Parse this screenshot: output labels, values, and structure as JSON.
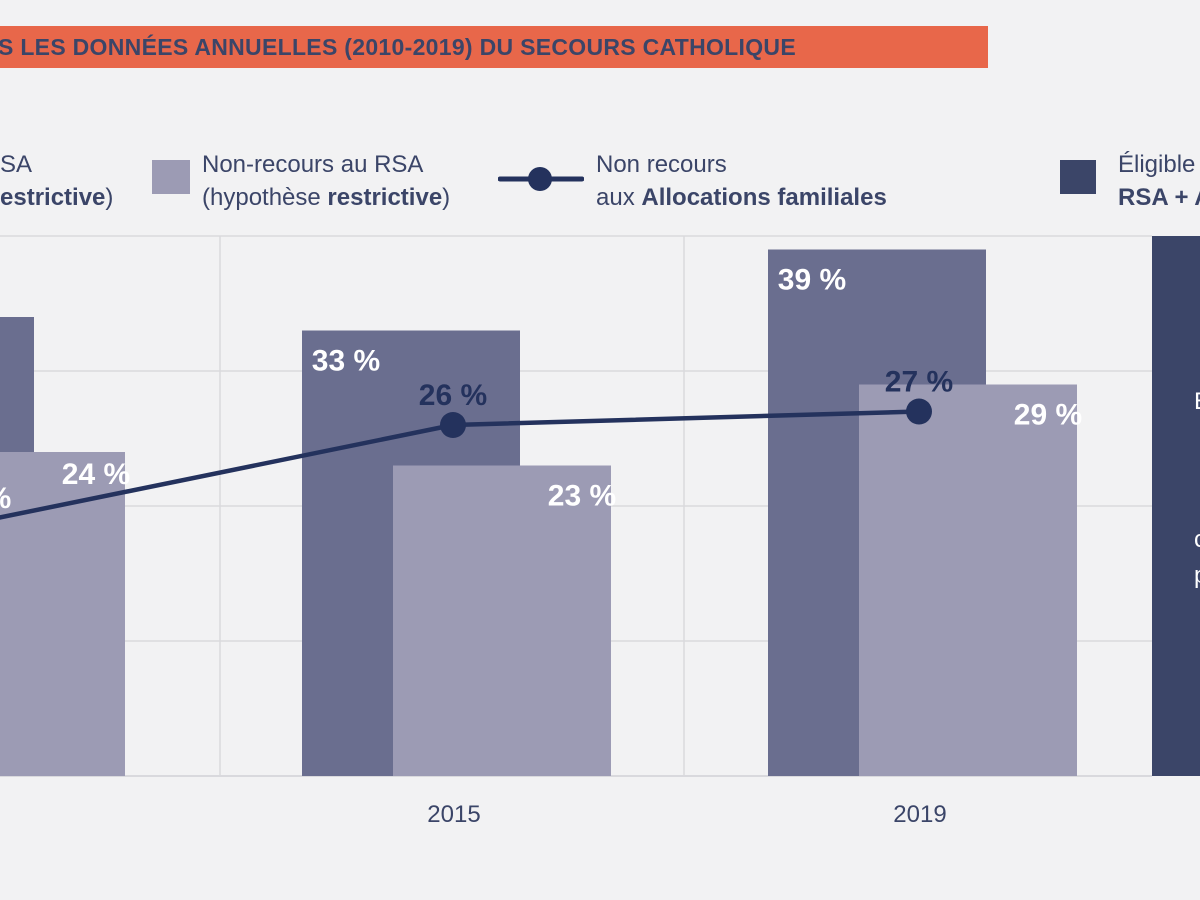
{
  "banner": {
    "text": "S LES DONNÉES ANNUELLES (2010-2019) DU SECOURS CATHOLIQUE"
  },
  "legend": {
    "item1": {
      "line1": "SA",
      "line2_bold": "estrictive",
      "line2_end": ")"
    },
    "item2": {
      "line1": "Non-recours au RSA",
      "line2_start": "(hypothèse ",
      "line2_bold": "restrictive",
      "line2_end": ")"
    },
    "item3": {
      "line1": "Non recours",
      "line2_start": "aux ",
      "line2_bold": "Allocations familiales"
    },
    "item4": {
      "line1": "Éligible",
      "line2_bold": "RSA + A"
    }
  },
  "side_panel_fragments": [
    "E",
    "c",
    "p"
  ],
  "colors": {
    "dark_bar": "#6a6e8f",
    "light_bar": "#9c9bb4",
    "line": "#24325d",
    "banner": "#e8674a",
    "panel": "#3b4568",
    "grid": "#d9d9dd"
  },
  "chart_data": {
    "type": "bar",
    "categories": [
      "",
      "2015",
      "2019"
    ],
    "series": [
      {
        "values": [
          null,
          33,
          39
        ],
        "labels": [
          "",
          "33 %",
          "39 %"
        ]
      },
      {
        "name": "Non-recours au RSA (hypothèse restrictive)",
        "values": [
          24,
          23,
          29
        ],
        "labels": [
          "24 %",
          "23 %",
          "29 %"
        ]
      },
      {
        "name": "Non recours aux Allocations familiales",
        "type": "line",
        "values": [
          null,
          26,
          27
        ],
        "labels": [
          "",
          "26 %",
          "27 %"
        ]
      }
    ],
    "partial_label_left": "%",
    "grid": true,
    "ylim": [
      0,
      40
    ]
  }
}
